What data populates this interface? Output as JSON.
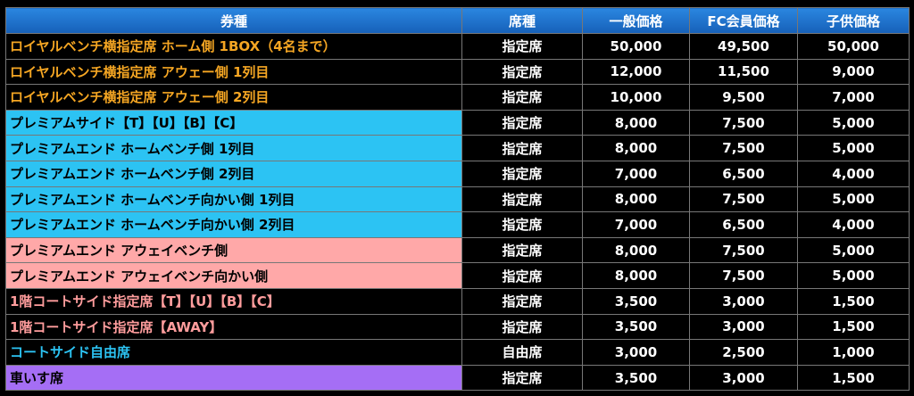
{
  "table": {
    "header": [
      "券種",
      "席種",
      "一般価格",
      "FC会員価格",
      "子供価格"
    ],
    "rows": [
      [
        "ロイヤルベンチ横指定席 ホーム側 1BOX（4名まで）",
        "指定席",
        "50,000",
        "49,500",
        "50,000"
      ],
      [
        "ロイヤルベンチ横指定席 アウェー側 1列目",
        "指定席",
        "12,000",
        "11,500",
        "9,000"
      ],
      [
        "ロイヤルベンチ横指定席 アウェー側 2列目",
        "指定席",
        "10,000",
        "9,500",
        "7,000"
      ],
      [
        "プレミアムサイド【T】【U】【B】【C】",
        "指定席",
        "8,000",
        "7,500",
        "5,000"
      ],
      [
        "プレミアムエンド ホームベンチ側 1列目",
        "指定席",
        "8,000",
        "7,500",
        "5,000"
      ],
      [
        "プレミアムエンド ホームベンチ側 2列目",
        "指定席",
        "7,000",
        "6,500",
        "4,000"
      ],
      [
        "プレミアムエンド ホームベンチ向かい側 1列目",
        "指定席",
        "8,000",
        "7,500",
        "5,000"
      ],
      [
        "プレミアムエンド ホームベンチ向かい側 2列目",
        "指定席",
        "7,000",
        "6,500",
        "4,000"
      ],
      [
        "プレミアムエンド アウェイベンチ側",
        "指定席",
        "8,000",
        "7,500",
        "5,000"
      ],
      [
        "プレミアムエンド アウェイベンチ向かい側",
        "指定席",
        "8,000",
        "7,500",
        "5,000"
      ],
      [
        "1階コートサイド指定席【T】【U】【B】【C】",
        "指定席",
        "3,500",
        "3,000",
        "1,500"
      ],
      [
        "1階コートサイド指定席【AWAY】",
        "指定席",
        "3,500",
        "3,000",
        "1,500"
      ],
      [
        "コートサイド自由席",
        "自由席",
        "3,000",
        "2,500",
        "1,000"
      ],
      [
        "車いす席",
        "指定席",
        "3,500",
        "3,000",
        "1,500"
      ]
    ]
  }
}
